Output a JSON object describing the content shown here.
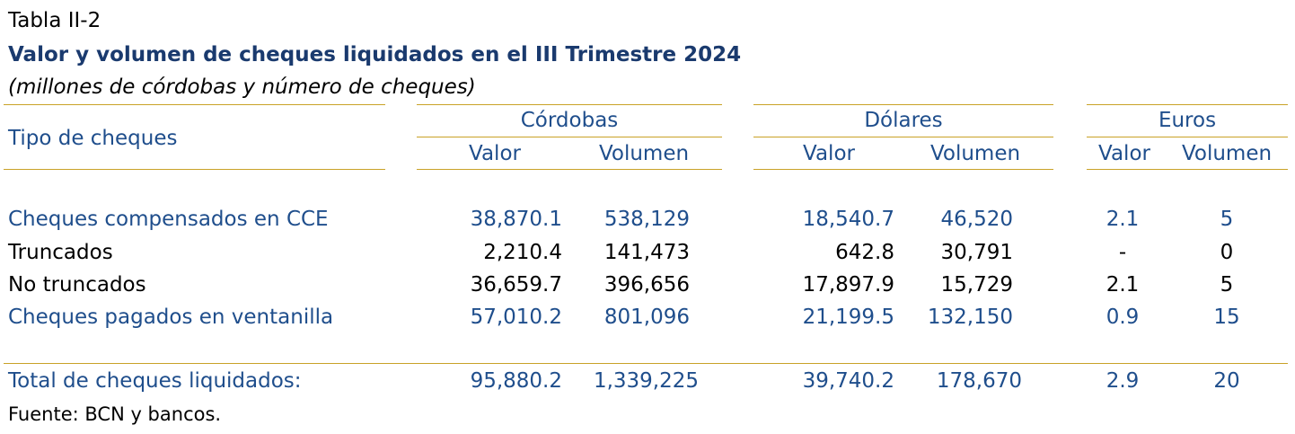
{
  "table": {
    "label": "Tabla II-2",
    "title": "Valor y volumen de cheques liquidados en el III Trimestre 2024",
    "subtitle": "(millones de córdobas y número de cheques)",
    "row_header": "Tipo de cheques",
    "groups": [
      "Córdobas",
      "Dólares",
      "Euros"
    ],
    "sub_headers": [
      "Valor",
      "Volumen"
    ],
    "rows": [
      {
        "label": "Cheques compensados en CCE",
        "cordobas_valor": "38,870.1",
        "cordobas_volumen": "538,129",
        "dolares_valor": "18,540.7",
        "dolares_volumen": "46,520",
        "euros_valor": "2.1",
        "euros_volumen": "5",
        "highlight": true
      },
      {
        "label": "Truncados",
        "cordobas_valor": "2,210.4",
        "cordobas_volumen": "141,473",
        "dolares_valor": "642.8",
        "dolares_volumen": "30,791",
        "euros_valor": "-",
        "euros_volumen": "0",
        "highlight": false
      },
      {
        "label": "No truncados",
        "cordobas_valor": "36,659.7",
        "cordobas_volumen": "396,656",
        "dolares_valor": "17,897.9",
        "dolares_volumen": "15,729",
        "euros_valor": "2.1",
        "euros_volumen": "5",
        "highlight": false
      },
      {
        "label": "Cheques pagados en ventanilla",
        "cordobas_valor": "57,010.2",
        "cordobas_volumen": "801,096",
        "dolares_valor": "21,199.5",
        "dolares_volumen": "132,150",
        "euros_valor": "0.9",
        "euros_volumen": "15",
        "highlight": true
      }
    ],
    "total": {
      "label": "Total de cheques liquidados:",
      "cordobas_valor": "95,880.2",
      "cordobas_volumen": "1,339,225",
      "dolares_valor": "39,740.2",
      "dolares_volumen": "178,670",
      "euros_valor": "2.9",
      "euros_volumen": "20"
    },
    "source": "Fuente: BCN y bancos."
  }
}
